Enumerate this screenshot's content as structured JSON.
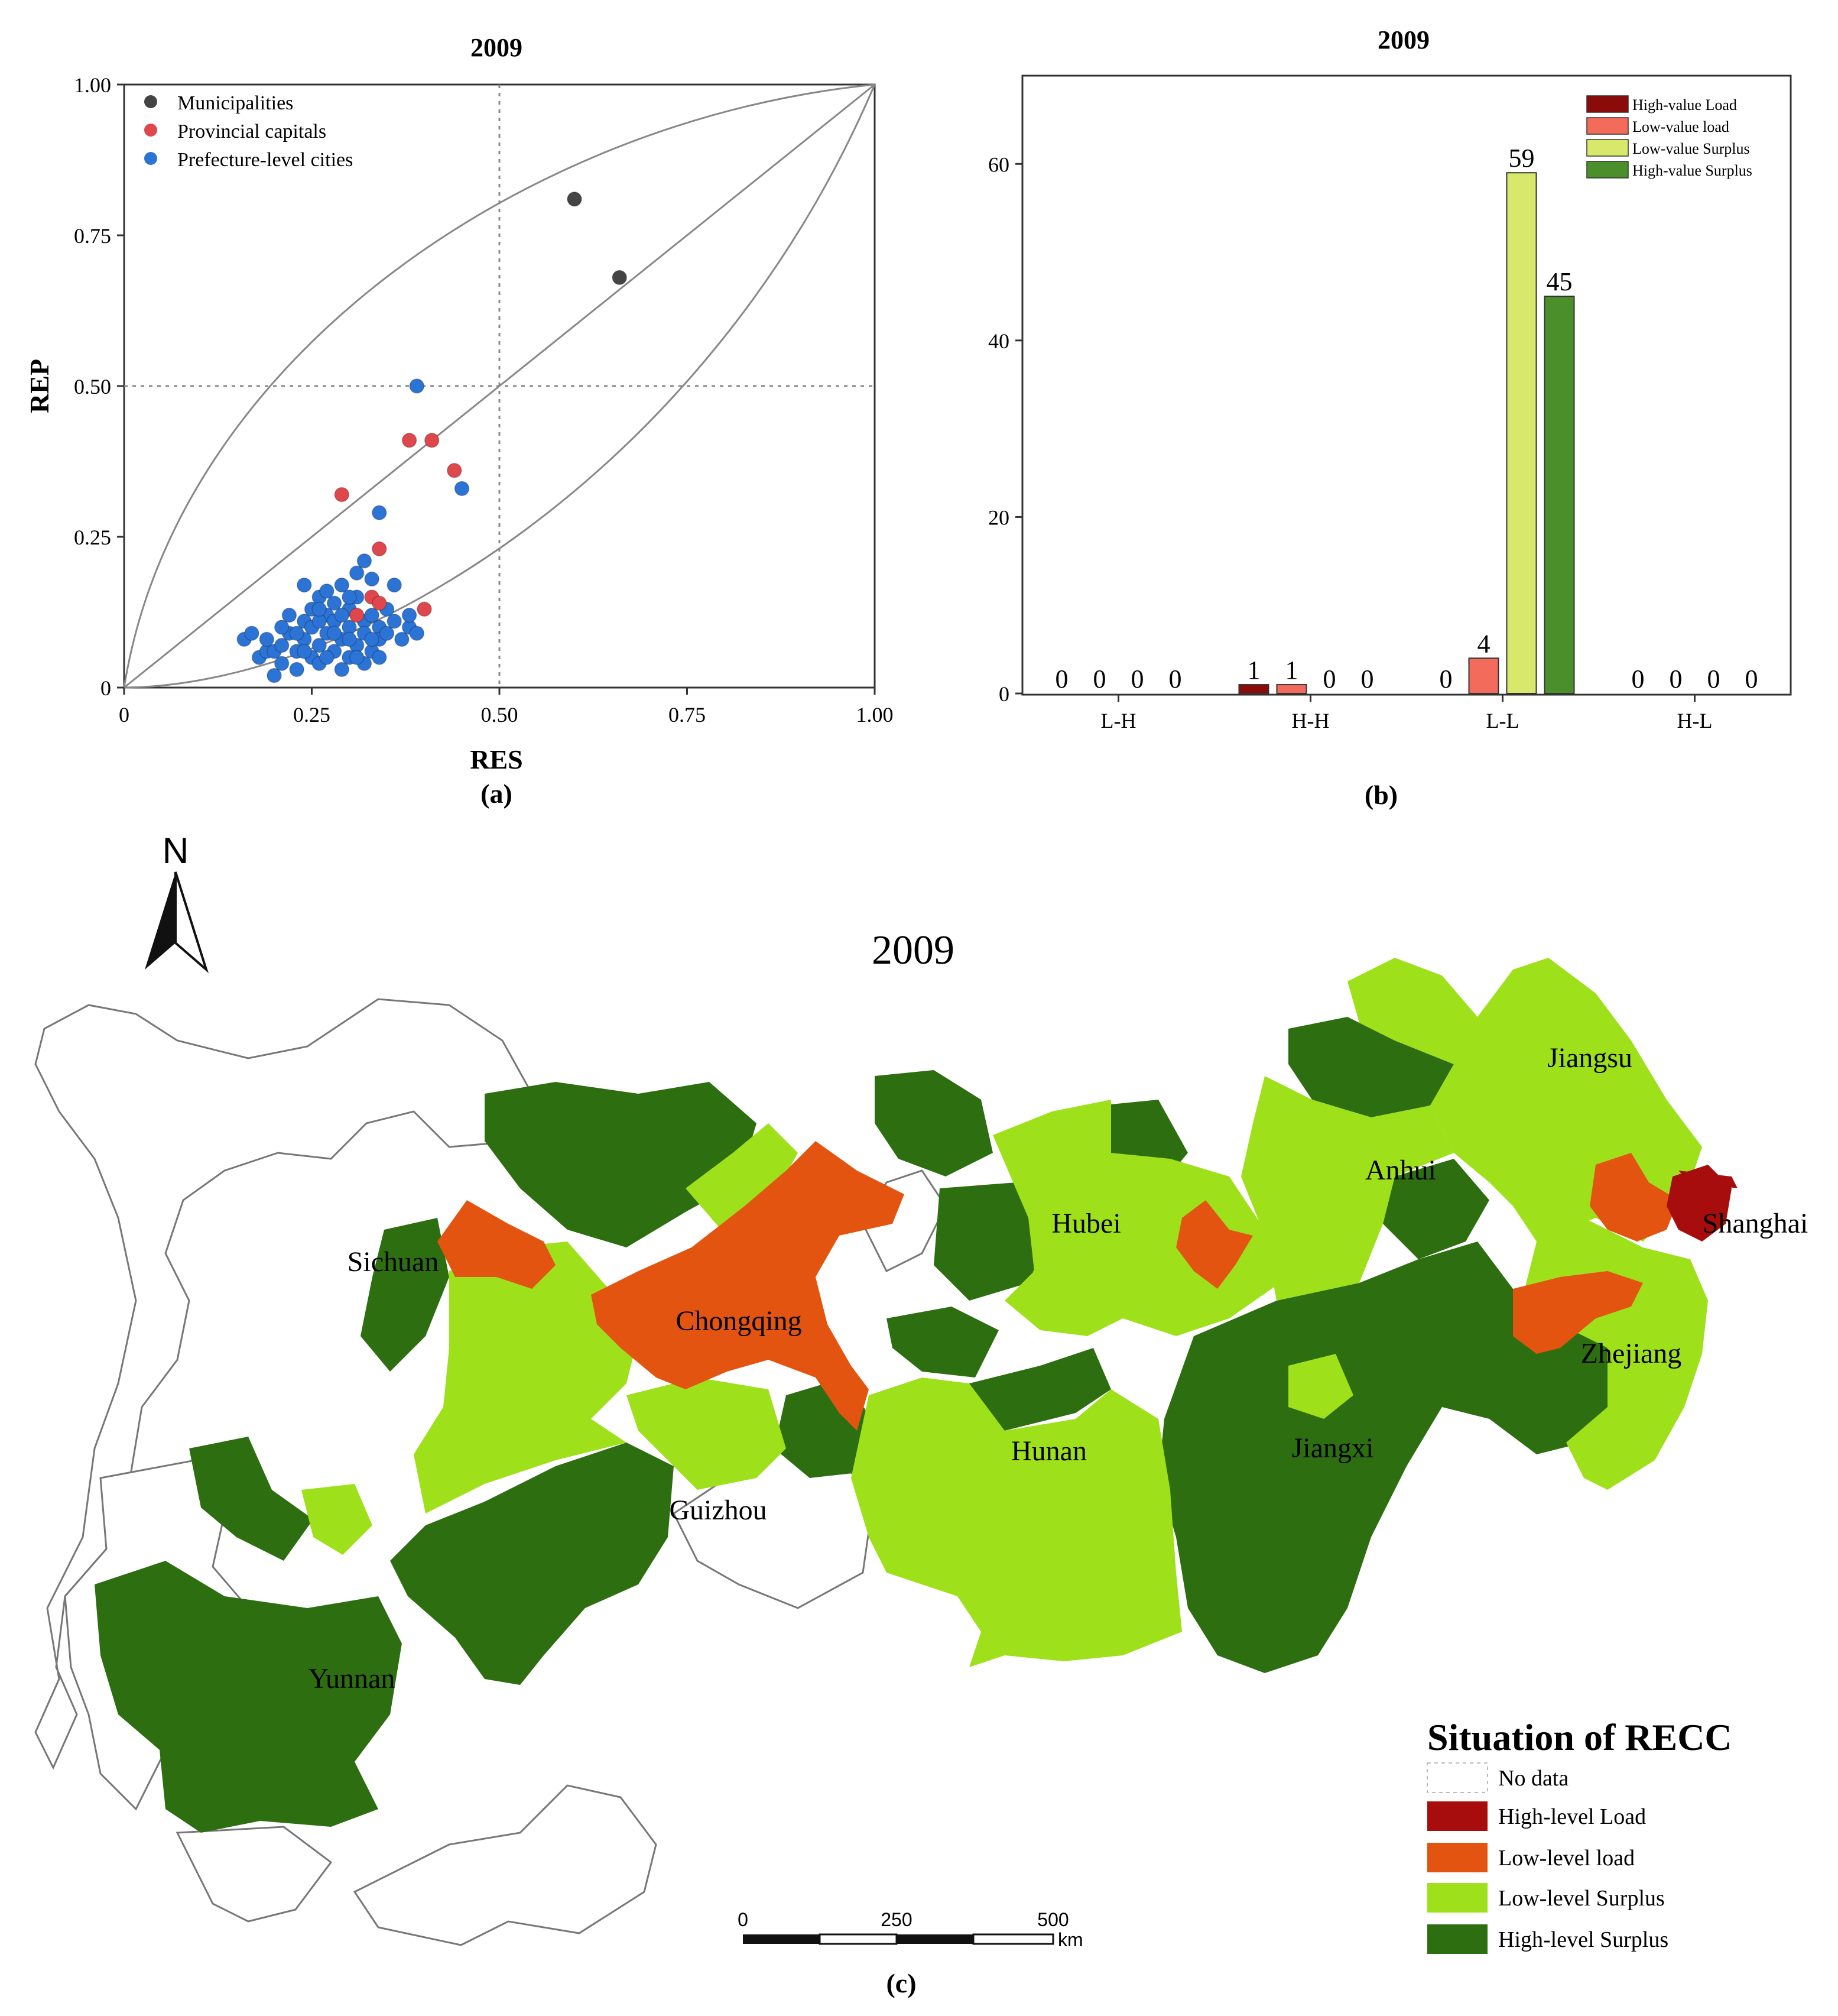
{
  "colors": {
    "municipality": "#444444",
    "capital": "#e0474c",
    "prefecture": "#2b74d6",
    "high_load": "#8b0a0a",
    "low_load": "#f26b5b",
    "low_surplus": "#d8e86b",
    "high_surplus": "#4a8f2a",
    "map_high_load": "#a80d0d",
    "map_low_load": "#e35410",
    "map_low_surplus": "#9ee01a",
    "map_high_surplus": "#2d6e10"
  },
  "panel_a": {
    "caption": "(a)",
    "chart_data": {
      "type": "scatter",
      "title": "2009",
      "xlabel": "RES",
      "ylabel": "REP",
      "xlim": [
        0,
        1
      ],
      "ylim": [
        0,
        1
      ],
      "xticks": [
        "0",
        "0.25",
        "0.50",
        "0.75",
        "1.00"
      ],
      "yticks": [
        "0",
        "0.25",
        "0.50",
        "0.75",
        "1.00"
      ],
      "legend_position": "top-left",
      "series": [
        {
          "name": "Municipalities",
          "points": [
            [
              0.6,
              0.81
            ],
            [
              0.66,
              0.68
            ]
          ]
        },
        {
          "name": "Provincial capitals",
          "points": [
            [
              0.29,
              0.32
            ],
            [
              0.38,
              0.41
            ],
            [
              0.41,
              0.41
            ],
            [
              0.44,
              0.36
            ],
            [
              0.34,
              0.23
            ],
            [
              0.33,
              0.15
            ],
            [
              0.34,
              0.14
            ],
            [
              0.4,
              0.13
            ],
            [
              0.31,
              0.12
            ]
          ]
        },
        {
          "name": "Prefecture-level cities",
          "points": [
            [
              0.39,
              0.5
            ],
            [
              0.45,
              0.33
            ],
            [
              0.34,
              0.29
            ],
            [
              0.16,
              0.08
            ],
            [
              0.17,
              0.09
            ],
            [
              0.18,
              0.05
            ],
            [
              0.19,
              0.06
            ],
            [
              0.19,
              0.08
            ],
            [
              0.2,
              0.02
            ],
            [
              0.2,
              0.06
            ],
            [
              0.21,
              0.04
            ],
            [
              0.21,
              0.07
            ],
            [
              0.22,
              0.12
            ],
            [
              0.22,
              0.09
            ],
            [
              0.23,
              0.06
            ],
            [
              0.23,
              0.03
            ],
            [
              0.24,
              0.17
            ],
            [
              0.24,
              0.11
            ],
            [
              0.24,
              0.08
            ],
            [
              0.25,
              0.05
            ],
            [
              0.25,
              0.13
            ],
            [
              0.25,
              0.1
            ],
            [
              0.26,
              0.15
            ],
            [
              0.26,
              0.07
            ],
            [
              0.26,
              0.04
            ],
            [
              0.27,
              0.16
            ],
            [
              0.27,
              0.12
            ],
            [
              0.27,
              0.09
            ],
            [
              0.28,
              0.06
            ],
            [
              0.28,
              0.14
            ],
            [
              0.28,
              0.11
            ],
            [
              0.29,
              0.08
            ],
            [
              0.29,
              0.03
            ],
            [
              0.29,
              0.17
            ],
            [
              0.3,
              0.13
            ],
            [
              0.3,
              0.1
            ],
            [
              0.3,
              0.05
            ],
            [
              0.31,
              0.19
            ],
            [
              0.31,
              0.07
            ],
            [
              0.31,
              0.15
            ],
            [
              0.32,
              0.21
            ],
            [
              0.32,
              0.11
            ],
            [
              0.32,
              0.09
            ],
            [
              0.32,
              0.04
            ],
            [
              0.33,
              0.12
            ],
            [
              0.33,
              0.06
            ],
            [
              0.33,
              0.18
            ],
            [
              0.34,
              0.1
            ],
            [
              0.34,
              0.08
            ],
            [
              0.35,
              0.13
            ],
            [
              0.35,
              0.09
            ],
            [
              0.36,
              0.17
            ],
            [
              0.36,
              0.11
            ],
            [
              0.37,
              0.08
            ],
            [
              0.38,
              0.1
            ],
            [
              0.38,
              0.12
            ],
            [
              0.39,
              0.09
            ],
            [
              0.26,
              0.11
            ],
            [
              0.28,
              0.09
            ],
            [
              0.3,
              0.08
            ],
            [
              0.23,
              0.09
            ],
            [
              0.27,
              0.05
            ],
            [
              0.29,
              0.12
            ],
            [
              0.31,
              0.05
            ],
            [
              0.24,
              0.06
            ],
            [
              0.21,
              0.1
            ],
            [
              0.33,
              0.08
            ],
            [
              0.3,
              0.15
            ],
            [
              0.26,
              0.13
            ],
            [
              0.34,
              0.05
            ]
          ]
        }
      ]
    }
  },
  "panel_b": {
    "caption": "(b)",
    "chart_data": {
      "type": "bar",
      "title": "2009",
      "categories": [
        "L-H",
        "H-H",
        "L-L",
        "H-L"
      ],
      "ylim": [
        0,
        70
      ],
      "yticks": [
        "0",
        "20",
        "40",
        "60"
      ],
      "legend_position": "top-right",
      "series": [
        {
          "name": "High-value Load",
          "values": [
            0,
            1,
            0,
            0
          ]
        },
        {
          "name": "Low-value load",
          "values": [
            0,
            1,
            4,
            0
          ]
        },
        {
          "name": "Low-value Surplus",
          "values": [
            0,
            0,
            59,
            0
          ]
        },
        {
          "name": "High-value Surplus",
          "values": [
            0,
            0,
            45,
            0
          ]
        }
      ]
    }
  },
  "panel_c": {
    "caption": "(c)",
    "title": "2009",
    "north": "N",
    "legend_title": "Situation of RECC",
    "legend": [
      "No data",
      "High-level Load",
      "Low-level load",
      "Low-level Surplus",
      "High-level Surplus"
    ],
    "scale": {
      "labels": [
        "0",
        "250",
        "500"
      ],
      "unit": "km"
    },
    "provinces": [
      "Jiangsu",
      "Anhui",
      "Shanghai",
      "Hubei",
      "Sichuan",
      "Chongqing",
      "Zhejiang",
      "Hunan",
      "Jiangxi",
      "Guizhou",
      "Yunnan"
    ]
  }
}
